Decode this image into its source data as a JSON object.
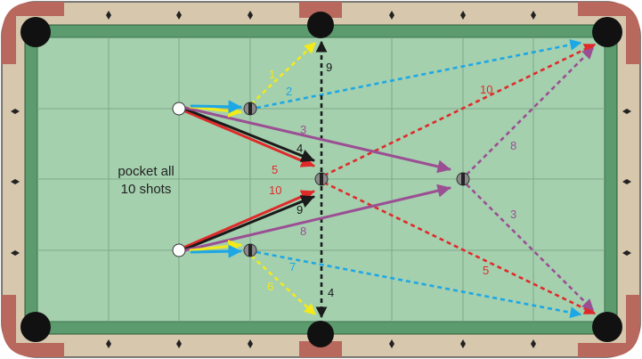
{
  "caption": {
    "line1": "pocket all",
    "line2": "10 shots"
  },
  "colors": {
    "rail_wood": "#d6c7ad",
    "corner_pocket_trim": "#b8685c",
    "cushion": "#5b9b6d",
    "cloth": "#a4d0ae",
    "grid": "#7fa98a",
    "blue": "#1ea7e6",
    "yellow": "#f2ea1a",
    "black": "#1a1a1a",
    "red": "#e02a2a",
    "purple": "#9b4f93"
  },
  "shot_labels": {
    "s1": "1",
    "s2": "2",
    "s3": "3",
    "s4": "4",
    "s5": "5",
    "s10": "10",
    "s9": "9",
    "s8": "8",
    "s9_right": "9",
    "s4_bottom": "4",
    "s10_far": "10",
    "s8_far": "8",
    "s3_far": "3",
    "s7": "7",
    "s6": "6",
    "s5_far": "5"
  }
}
